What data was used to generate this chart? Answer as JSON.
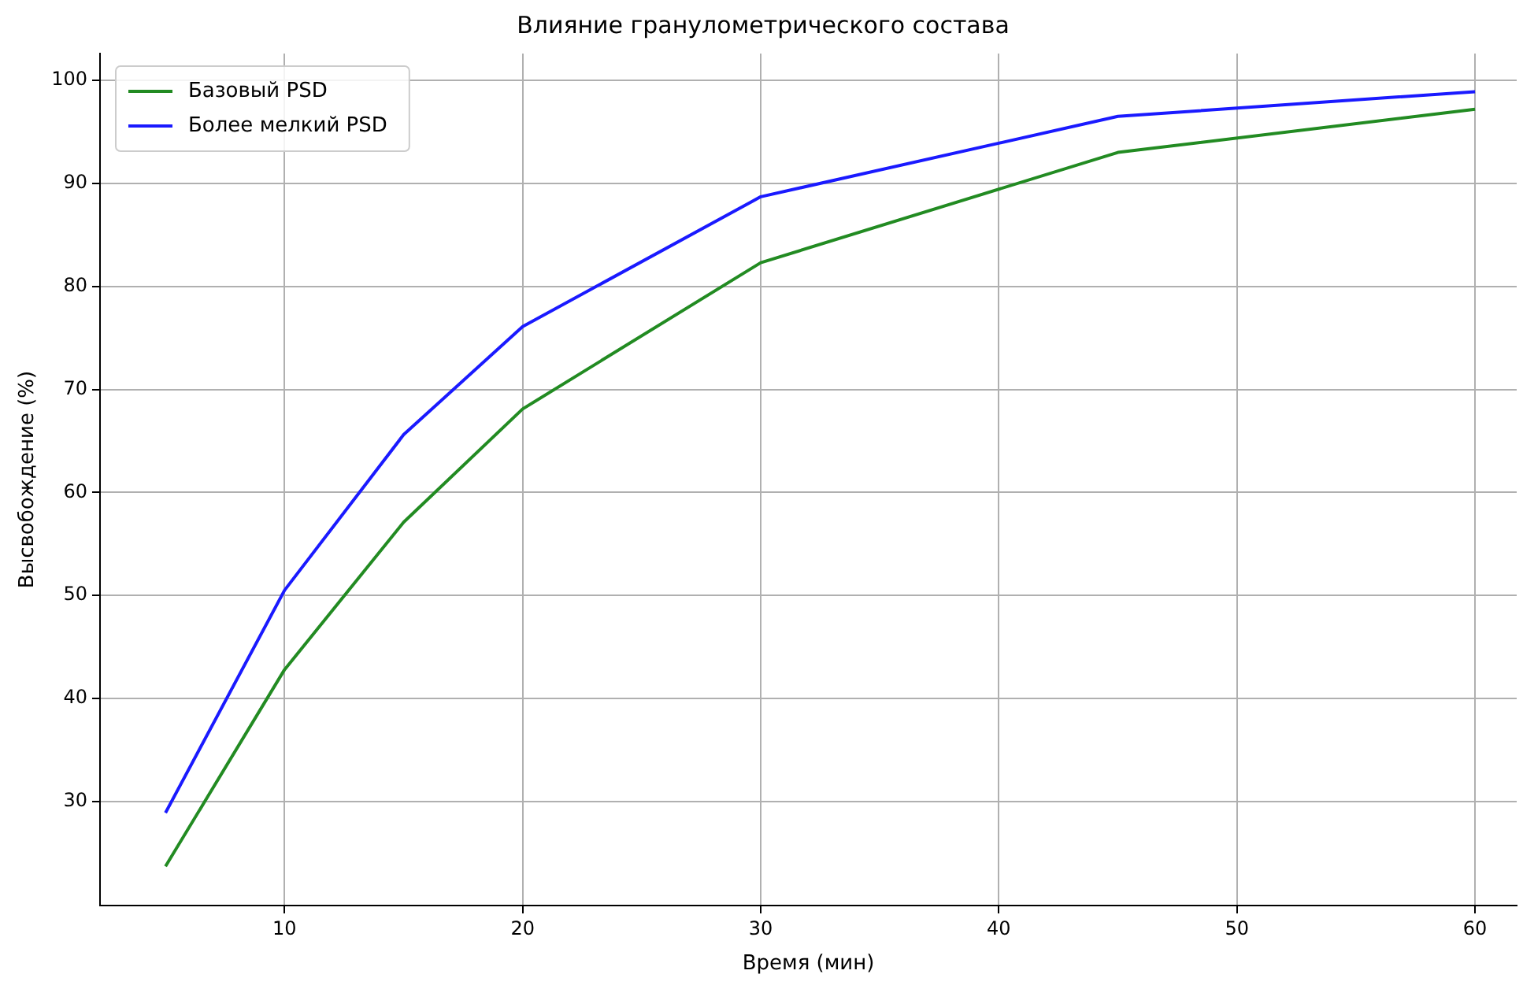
{
  "chart_data": {
    "type": "line",
    "title": "Влияние гранулометрического состава",
    "xlabel": "Время (мин)",
    "ylabel": "Высвобождение (%)",
    "x": [
      5,
      10,
      15,
      20,
      30,
      45,
      60
    ],
    "series": [
      {
        "name": "Базовый PSD",
        "color": "#228b22",
        "values": [
          23.7,
          42.8,
          57.1,
          68.1,
          82.3,
          93.0,
          97.2
        ]
      },
      {
        "name": "Более мелкий PSD",
        "color": "#1a1aff",
        "values": [
          28.9,
          50.5,
          65.6,
          76.1,
          88.7,
          96.5,
          98.9
        ]
      }
    ],
    "xlim": [
      2.25,
      61.75
    ],
    "xticks": [
      10,
      20,
      30,
      40,
      50,
      60
    ],
    "ylim": [
      19.9,
      102.6
    ],
    "yticks": [
      30,
      40,
      50,
      60,
      70,
      80,
      90,
      100
    ],
    "grid": true,
    "legend": "top left",
    "marker": "none",
    "line_style": "solid"
  }
}
